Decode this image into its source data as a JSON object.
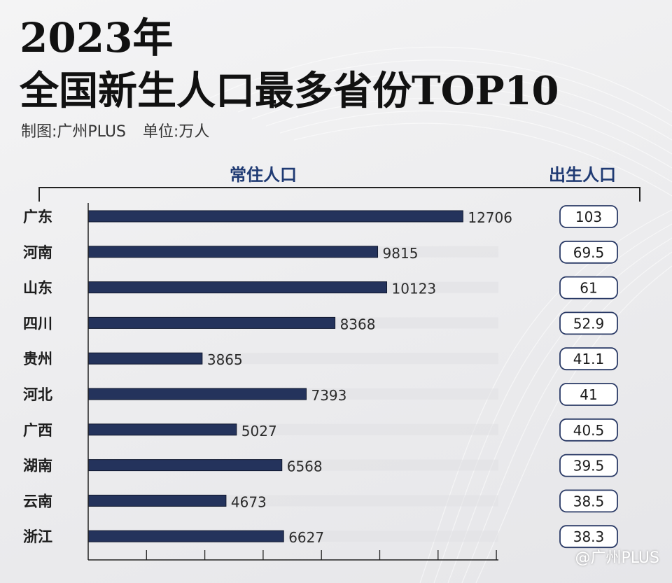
{
  "header": {
    "title_line1": "2023年",
    "title_line2": "全国新生人口最多省份TOP10",
    "credit": "制图:广州PLUS",
    "unit": "单位:万人"
  },
  "columns": {
    "left_header": "常住人口",
    "right_header": "出生人口"
  },
  "watermark": "@广州PLUS",
  "colors": {
    "bar": "#24335c",
    "bar_track": "#e0e0e3",
    "heading": "#1f3a73",
    "pill_border": "#2a3a66",
    "axis": "#222222"
  },
  "chart_data": {
    "type": "bar",
    "orientation": "horizontal",
    "categories": [
      "广东",
      "河南",
      "山东",
      "四川",
      "贵州",
      "河北",
      "广西",
      "湖南",
      "云南",
      "浙江"
    ],
    "series": [
      {
        "name": "常住人口",
        "values": [
          12706,
          9815,
          10123,
          8368,
          3865,
          7393,
          5027,
          6568,
          4673,
          6627
        ]
      },
      {
        "name": "出生人口",
        "values": [
          "103",
          "69.5",
          "61",
          "52.9",
          "41.1",
          "41",
          "40.5",
          "39.5",
          "38.5",
          "38.3"
        ]
      }
    ],
    "xlim": [
      0,
      15000
    ],
    "grid": false,
    "legend": "none"
  }
}
